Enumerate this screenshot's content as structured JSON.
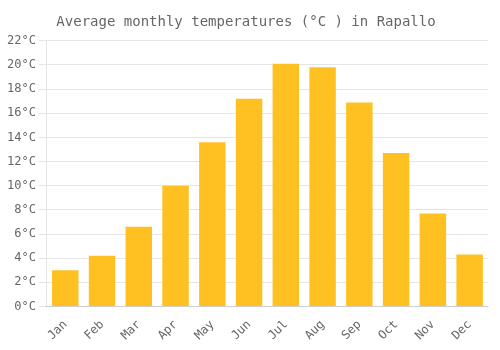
{
  "chart_data": {
    "type": "bar",
    "title": "Average monthly temperatures (°C ) in Rapallo",
    "categories": [
      "Jan",
      "Feb",
      "Mar",
      "Apr",
      "May",
      "Jun",
      "Jul",
      "Aug",
      "Sep",
      "Oct",
      "Nov",
      "Dec"
    ],
    "values": [
      3.0,
      4.2,
      6.6,
      10.0,
      13.6,
      17.2,
      20.1,
      19.8,
      16.9,
      12.7,
      7.7,
      4.3
    ],
    "color": "#FFC022",
    "ylim": [
      0,
      22
    ],
    "yticks": [
      {
        "value": 0,
        "label": "0°C"
      },
      {
        "value": 2,
        "label": "2°C"
      },
      {
        "value": 4,
        "label": "4°C"
      },
      {
        "value": 6,
        "label": "6°C"
      },
      {
        "value": 8,
        "label": "8°C"
      },
      {
        "value": 10,
        "label": "10°C"
      },
      {
        "value": 12,
        "label": "12°C"
      },
      {
        "value": 14,
        "label": "14°C"
      },
      {
        "value": 16,
        "label": "16°C"
      },
      {
        "value": 18,
        "label": "18°C"
      },
      {
        "value": 20,
        "label": "20°C"
      },
      {
        "value": 22,
        "label": "22°C"
      }
    ],
    "grid": true
  }
}
